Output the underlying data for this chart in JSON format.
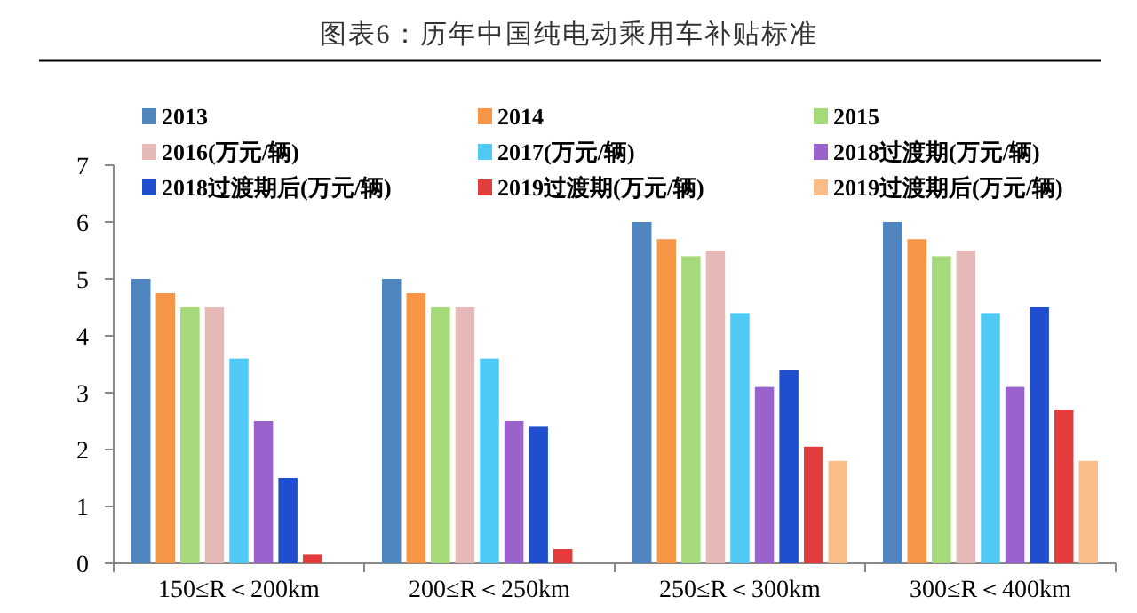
{
  "chart_data": {
    "type": "bar",
    "title": "图表6：历年中国纯电动乘用车补贴标准",
    "categories": [
      "150≤R＜200km",
      "200≤R＜250km",
      "250≤R＜300km",
      "300≤R＜400km"
    ],
    "ylim": [
      0,
      7
    ],
    "yticks": [
      0,
      1,
      2,
      3,
      4,
      5,
      6,
      7
    ],
    "legend": "top",
    "series": [
      {
        "name": "2013",
        "color": "#4f86c0",
        "values": [
          5,
          5,
          6,
          6
        ]
      },
      {
        "name": "2014",
        "color": "#f79646",
        "values": [
          4.75,
          4.75,
          5.7,
          5.7
        ]
      },
      {
        "name": "2015",
        "color": "#a5d97a",
        "values": [
          4.5,
          4.5,
          5.4,
          5.4
        ]
      },
      {
        "name": "2016(万元/辆)",
        "color": "#e6b9b8",
        "values": [
          4.5,
          4.5,
          5.5,
          5.5
        ]
      },
      {
        "name": "2017(万元/辆)",
        "color": "#4fcaf5",
        "values": [
          3.6,
          3.6,
          4.4,
          4.4
        ]
      },
      {
        "name": "2018过渡期(万元/辆)",
        "color": "#9a62cc",
        "values": [
          2.5,
          2.5,
          3.1,
          3.1
        ]
      },
      {
        "name": "2018过渡期后(万元/辆)",
        "color": "#1f4fcf",
        "values": [
          1.5,
          2.4,
          3.4,
          4.5
        ]
      },
      {
        "name": "2019过渡期(万元/辆)",
        "color": "#e23c3c",
        "values": [
          0.15,
          0.25,
          2.05,
          2.7
        ]
      },
      {
        "name": "2019过渡期后(万元/辆)",
        "color": "#f9bd8a",
        "values": [
          null,
          null,
          1.8,
          1.8
        ]
      }
    ]
  }
}
